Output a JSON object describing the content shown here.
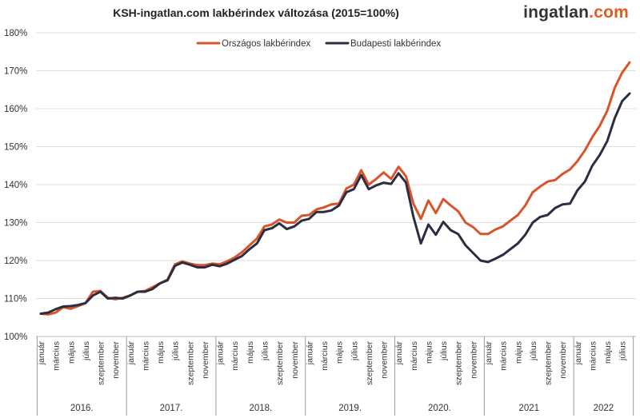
{
  "header": {
    "title": "KSH-ingatlan.com lakbérindex változása (2015=100%)",
    "logo": {
      "main": "ingatlan",
      "dot": ".",
      "tld": "com"
    }
  },
  "chart_data": {
    "type": "line",
    "title": "KSH-ingatlan.com lakbérindex változása (2015=100%)",
    "xlabel": "",
    "ylabel": "",
    "ylim": [
      100,
      180
    ],
    "yticks": [
      "100%",
      "110%",
      "120%",
      "130%",
      "140%",
      "150%",
      "160%",
      "170%",
      "180%"
    ],
    "grid": true,
    "legend_position": "top-center",
    "colors": {
      "orszagos": "#d9542a",
      "budapesti": "#2b2d42",
      "grid": "#dddddd"
    },
    "years": [
      "2016.",
      "2017.",
      "2018.",
      "2019.",
      "2020.",
      "2021",
      "2022"
    ],
    "month_labels": [
      "január",
      "március",
      "május",
      "július",
      "szeptember",
      "november"
    ],
    "month_labels_2022": [
      "január",
      "március",
      "május",
      "július"
    ],
    "series": [
      {
        "name": "Országos lakbérindex",
        "color": "#d9542a",
        "values": [
          106.0,
          105.8,
          106.3,
          107.7,
          107.3,
          108.0,
          108.8,
          111.8,
          112.0,
          110.2,
          109.8,
          110.2,
          110.8,
          111.8,
          112.0,
          113.0,
          114.0,
          115.0,
          119.0,
          119.8,
          119.2,
          118.8,
          118.8,
          119.2,
          119.0,
          119.8,
          120.8,
          122.2,
          124.0,
          125.8,
          129.0,
          129.5,
          130.8,
          130.0,
          130.0,
          131.8,
          132.0,
          133.5,
          134.0,
          134.8,
          135.0,
          139.0,
          140.0,
          143.8,
          140.0,
          141.5,
          143.2,
          141.5,
          144.7,
          142.2,
          135.0,
          131.0,
          135.8,
          132.5,
          136.2,
          134.5,
          133.0,
          130.0,
          128.8,
          127.0,
          127.0,
          128.2,
          129.0,
          130.5,
          132.0,
          134.5,
          138.0,
          139.5,
          140.8,
          141.2,
          142.8,
          144.0,
          146.2,
          149.0,
          152.5,
          155.5,
          159.5,
          165.5,
          169.5,
          172.2
        ]
      },
      {
        "name": "Budapesti lakbérindex",
        "color": "#2b2d42",
        "values": [
          106.0,
          106.3,
          107.2,
          107.9,
          108.0,
          108.3,
          108.8,
          110.8,
          111.8,
          110.0,
          110.2,
          110.0,
          110.8,
          111.8,
          111.8,
          112.5,
          114.0,
          114.8,
          118.6,
          119.5,
          118.9,
          118.2,
          118.2,
          118.9,
          118.5,
          119.2,
          120.2,
          121.2,
          123.0,
          124.5,
          128.0,
          128.5,
          129.8,
          128.3,
          129.0,
          130.5,
          131.0,
          132.8,
          132.8,
          133.2,
          134.5,
          138.0,
          138.8,
          142.5,
          138.8,
          139.8,
          140.5,
          140.2,
          143.0,
          140.5,
          131.5,
          124.5,
          129.5,
          126.8,
          130.2,
          128.0,
          127.0,
          124.0,
          122.0,
          120.0,
          119.6,
          120.5,
          121.5,
          123.0,
          124.5,
          126.8,
          130.0,
          131.5,
          132.0,
          133.8,
          134.8,
          135.0,
          138.5,
          140.8,
          145.0,
          147.8,
          151.5,
          157.5,
          162.0,
          164.0
        ]
      }
    ]
  }
}
